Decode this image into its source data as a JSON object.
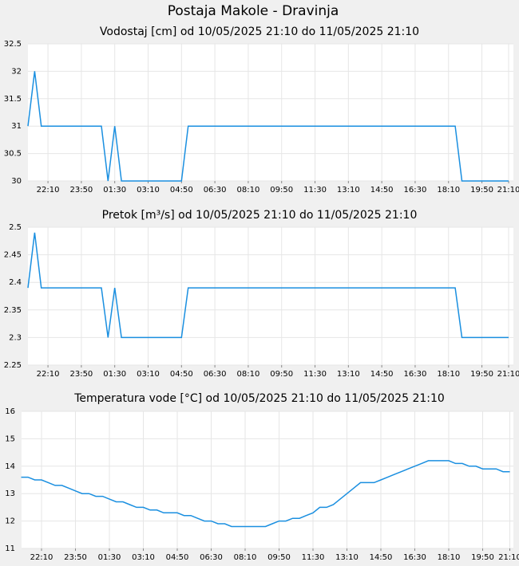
{
  "title": "Postaja Makole - Dravinja",
  "chart_data": [
    {
      "type": "line",
      "title": "Vodostaj [cm] od 10/05/2025 21:10 do 11/05/2025 21:10",
      "categories": [
        null,
        null,
        null,
        "22:10",
        null,
        null,
        null,
        null,
        "23:50",
        null,
        null,
        null,
        null,
        "01:30",
        null,
        null,
        null,
        null,
        "03:10",
        null,
        null,
        null,
        null,
        "04:50",
        null,
        null,
        null,
        null,
        "06:30",
        null,
        null,
        null,
        null,
        "08:10",
        null,
        null,
        null,
        null,
        "09:50",
        null,
        null,
        null,
        null,
        "11:30",
        null,
        null,
        null,
        null,
        "13:10",
        null,
        null,
        null,
        null,
        "14:50",
        null,
        null,
        null,
        null,
        "16:30",
        null,
        null,
        null,
        null,
        "18:10",
        null,
        null,
        null,
        null,
        "19:50",
        null,
        null,
        null,
        "21:10"
      ],
      "values": [
        31,
        32,
        31,
        31,
        31,
        31,
        31,
        31,
        31,
        31,
        31,
        31,
        30,
        31,
        30,
        30,
        30,
        30,
        30,
        30,
        30,
        30,
        30,
        30,
        31,
        31,
        31,
        31,
        31,
        31,
        31,
        31,
        31,
        31,
        31,
        31,
        31,
        31,
        31,
        31,
        31,
        31,
        31,
        31,
        31,
        31,
        31,
        31,
        31,
        31,
        31,
        31,
        31,
        31,
        31,
        31,
        31,
        31,
        31,
        31,
        31,
        31,
        31,
        31,
        31,
        30,
        30,
        30,
        30,
        30,
        30,
        30,
        30
      ],
      "color": "#1a8fe0",
      "ylim": [
        30,
        32.5
      ],
      "yticks": [
        30,
        30.5,
        31,
        31.5,
        32,
        32.5
      ],
      "grid": true
    },
    {
      "type": "line",
      "title": "Pretok [m³/s] od 10/05/2025 21:10 do 11/05/2025 21:10",
      "categories": [
        null,
        null,
        null,
        "22:10",
        null,
        null,
        null,
        null,
        "23:50",
        null,
        null,
        null,
        null,
        "01:30",
        null,
        null,
        null,
        null,
        "03:10",
        null,
        null,
        null,
        null,
        "04:50",
        null,
        null,
        null,
        null,
        "06:30",
        null,
        null,
        null,
        null,
        "08:10",
        null,
        null,
        null,
        null,
        "09:50",
        null,
        null,
        null,
        null,
        "11:30",
        null,
        null,
        null,
        null,
        "13:10",
        null,
        null,
        null,
        null,
        "14:50",
        null,
        null,
        null,
        null,
        "16:30",
        null,
        null,
        null,
        null,
        "18:10",
        null,
        null,
        null,
        null,
        "19:50",
        null,
        null,
        null,
        "21:10"
      ],
      "values": [
        2.39,
        2.49,
        2.39,
        2.39,
        2.39,
        2.39,
        2.39,
        2.39,
        2.39,
        2.39,
        2.39,
        2.39,
        2.3,
        2.39,
        2.3,
        2.3,
        2.3,
        2.3,
        2.3,
        2.3,
        2.3,
        2.3,
        2.3,
        2.3,
        2.39,
        2.39,
        2.39,
        2.39,
        2.39,
        2.39,
        2.39,
        2.39,
        2.39,
        2.39,
        2.39,
        2.39,
        2.39,
        2.39,
        2.39,
        2.39,
        2.39,
        2.39,
        2.39,
        2.39,
        2.39,
        2.39,
        2.39,
        2.39,
        2.39,
        2.39,
        2.39,
        2.39,
        2.39,
        2.39,
        2.39,
        2.39,
        2.39,
        2.39,
        2.39,
        2.39,
        2.39,
        2.39,
        2.39,
        2.39,
        2.39,
        2.3,
        2.3,
        2.3,
        2.3,
        2.3,
        2.3,
        2.3,
        2.3
      ],
      "color": "#1a8fe0",
      "ylim": [
        2.25,
        2.5
      ],
      "yticks": [
        2.25,
        2.3,
        2.35,
        2.4,
        2.45,
        2.5
      ],
      "grid": true
    },
    {
      "type": "line",
      "title": "Temperatura vode [°C] od 10/05/2025 21:10 do 11/05/2025 21:10",
      "categories": [
        null,
        null,
        null,
        "22:10",
        null,
        null,
        null,
        null,
        "23:50",
        null,
        null,
        null,
        null,
        "01:30",
        null,
        null,
        null,
        null,
        "03:10",
        null,
        null,
        null,
        null,
        "04:50",
        null,
        null,
        null,
        null,
        "06:30",
        null,
        null,
        null,
        null,
        "08:10",
        null,
        null,
        null,
        null,
        "09:50",
        null,
        null,
        null,
        null,
        "11:30",
        null,
        null,
        null,
        null,
        "13:10",
        null,
        null,
        null,
        null,
        "14:50",
        null,
        null,
        null,
        null,
        "16:30",
        null,
        null,
        null,
        null,
        "18:10",
        null,
        null,
        null,
        null,
        "19:50",
        null,
        null,
        null,
        "21:10"
      ],
      "values": [
        13.6,
        13.6,
        13.5,
        13.5,
        13.4,
        13.3,
        13.3,
        13.2,
        13.1,
        13.0,
        13.0,
        12.9,
        12.9,
        12.8,
        12.7,
        12.7,
        12.6,
        12.5,
        12.5,
        12.4,
        12.4,
        12.3,
        12.3,
        12.3,
        12.2,
        12.2,
        12.1,
        12.0,
        12.0,
        11.9,
        11.9,
        11.8,
        11.8,
        11.8,
        11.8,
        11.8,
        11.8,
        11.9,
        12.0,
        12.0,
        12.1,
        12.1,
        12.2,
        12.3,
        12.5,
        12.5,
        12.6,
        12.8,
        13.0,
        13.2,
        13.4,
        13.4,
        13.4,
        13.5,
        13.6,
        13.7,
        13.8,
        13.9,
        14.0,
        14.1,
        14.2,
        14.2,
        14.2,
        14.2,
        14.1,
        14.1,
        14.0,
        14.0,
        13.9,
        13.9,
        13.9,
        13.8,
        13.8
      ],
      "color": "#1a8fe0",
      "ylim": [
        11,
        16
      ],
      "yticks": [
        11,
        12,
        13,
        14,
        15,
        16
      ],
      "grid": true
    }
  ]
}
